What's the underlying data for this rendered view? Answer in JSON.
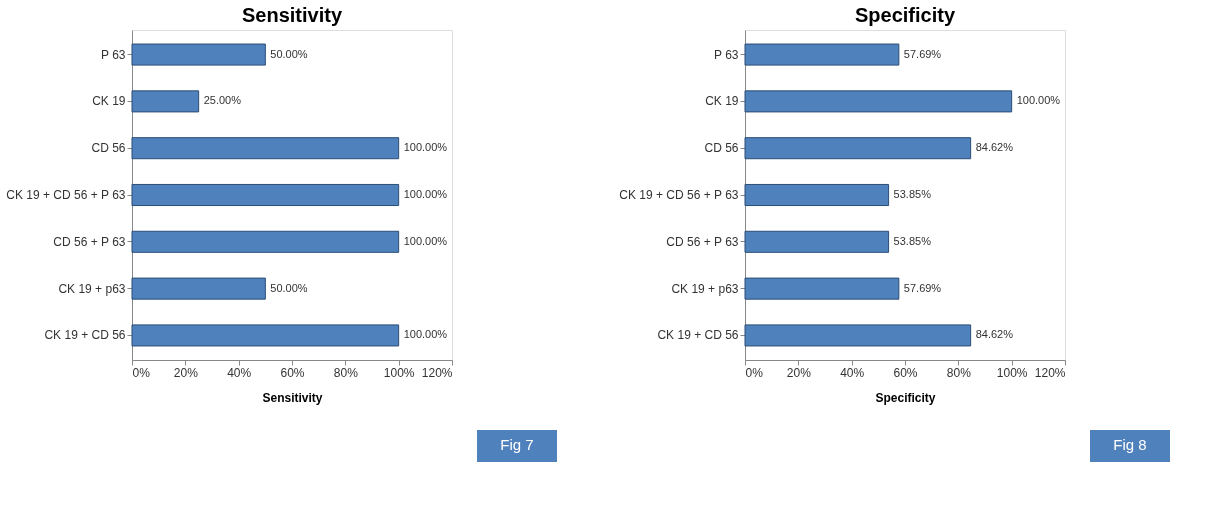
{
  "chart_data": [
    {
      "type": "bar",
      "orientation": "horizontal",
      "title": "Sensitivity",
      "xlabel": "Sensitivity",
      "categories": [
        "P 63",
        "CK 19",
        "CD 56",
        "CK 19 + CD 56 + P 63",
        "CD 56 + P 63",
        "CK 19 + p63",
        "CK 19 + CD 56"
      ],
      "values": [
        50,
        25,
        100,
        100,
        100,
        50,
        100
      ],
      "value_labels": [
        "50.00%",
        "25.00%",
        "100.00%",
        "100.00%",
        "100.00%",
        "50.00%",
        "100.00%"
      ],
      "color": "#4f81bd",
      "xlim": [
        0,
        120
      ],
      "xticks": [
        {
          "value": 0,
          "label": "0%"
        },
        {
          "value": 20,
          "label": "20%"
        },
        {
          "value": 40,
          "label": "40%"
        },
        {
          "value": 60,
          "label": "60%"
        },
        {
          "value": 80,
          "label": "80%"
        },
        {
          "value": 100,
          "label": "100%"
        },
        {
          "value": 120,
          "label": "120%"
        }
      ],
      "grid": false,
      "annotations": [
        "Fig 7"
      ]
    },
    {
      "type": "bar",
      "orientation": "horizontal",
      "title": "Specificity",
      "xlabel": "Specificity",
      "categories": [
        "P 63",
        "CK 19",
        "CD 56",
        "CK 19 + CD 56 + P 63",
        "CD 56 + P 63",
        "CK 19 + p63",
        "CK 19 + CD 56"
      ],
      "values": [
        57.69,
        100,
        84.62,
        53.85,
        53.85,
        57.69,
        84.62
      ],
      "value_labels": [
        "57.69%",
        "100.00%",
        "84.62%",
        "53.85%",
        "53.85%",
        "57.69%",
        "84.62%"
      ],
      "color": "#4f81bd",
      "xlim": [
        0,
        120
      ],
      "xticks": [
        {
          "value": 0,
          "label": "0%"
        },
        {
          "value": 20,
          "label": "20%"
        },
        {
          "value": 40,
          "label": "40%"
        },
        {
          "value": 60,
          "label": "60%"
        },
        {
          "value": 80,
          "label": "80%"
        },
        {
          "value": 100,
          "label": "100%"
        },
        {
          "value": 120,
          "label": "120%"
        }
      ],
      "grid": false,
      "annotations": [
        "Fig 8"
      ]
    }
  ]
}
